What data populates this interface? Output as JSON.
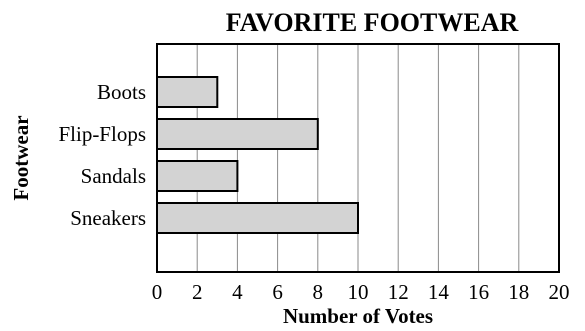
{
  "chart_data": {
    "type": "bar",
    "orientation": "horizontal",
    "title": "FAVORITE FOOTWEAR",
    "xlabel": "Number of Votes",
    "ylabel": "Footwear",
    "categories": [
      "Boots",
      "Flip-Flops",
      "Sandals",
      "Sneakers"
    ],
    "values": [
      3,
      8,
      4,
      10
    ],
    "xlim": [
      0,
      20
    ],
    "xticks": [
      0,
      2,
      4,
      6,
      8,
      10,
      12,
      14,
      16,
      18,
      20
    ],
    "grid": true,
    "bar_color": "#d3d3d3",
    "bar_edge_color": "#000000"
  }
}
